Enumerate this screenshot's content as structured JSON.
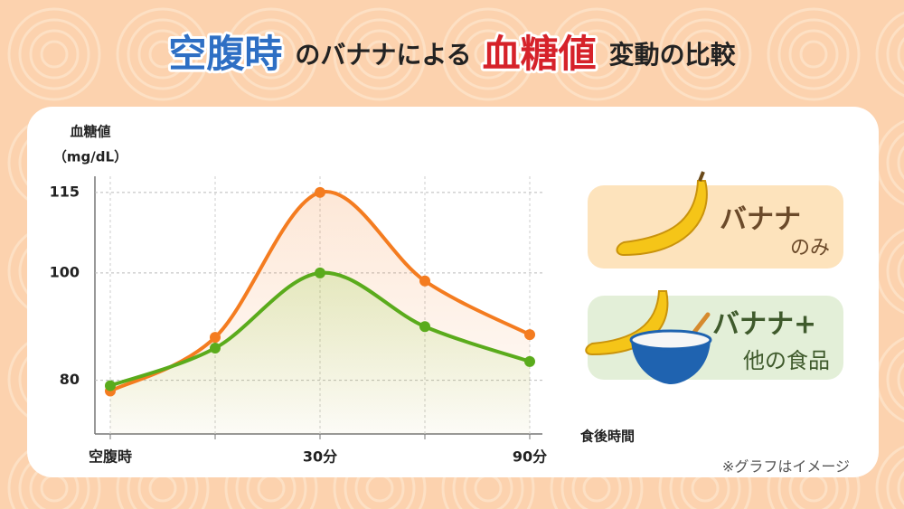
{
  "chart_data": {
    "type": "line",
    "title": [
      "空腹時",
      "のバナナによる",
      "血糖値",
      "変動の比較"
    ],
    "y_label": [
      "血糖値",
      "（mg/dL）"
    ],
    "x_label": "食後時間",
    "note": "※グラフはイメージ",
    "categories": [
      "空腹時",
      null,
      "30分",
      null,
      "90分"
    ],
    "series": [
      {
        "legend": [
          "バナナ",
          "のみ"
        ],
        "color": "#f47c20",
        "values": [
          78,
          88,
          115,
          98.5,
          88.5
        ]
      },
      {
        "legend": [
          "バナナ+",
          "他の食品"
        ],
        "color": "#5aab1c",
        "values": [
          79,
          86,
          100,
          90,
          83.5
        ]
      }
    ],
    "ylim": [
      70,
      118
    ],
    "yticks": [
      80,
      100,
      115
    ],
    "grid": true
  }
}
